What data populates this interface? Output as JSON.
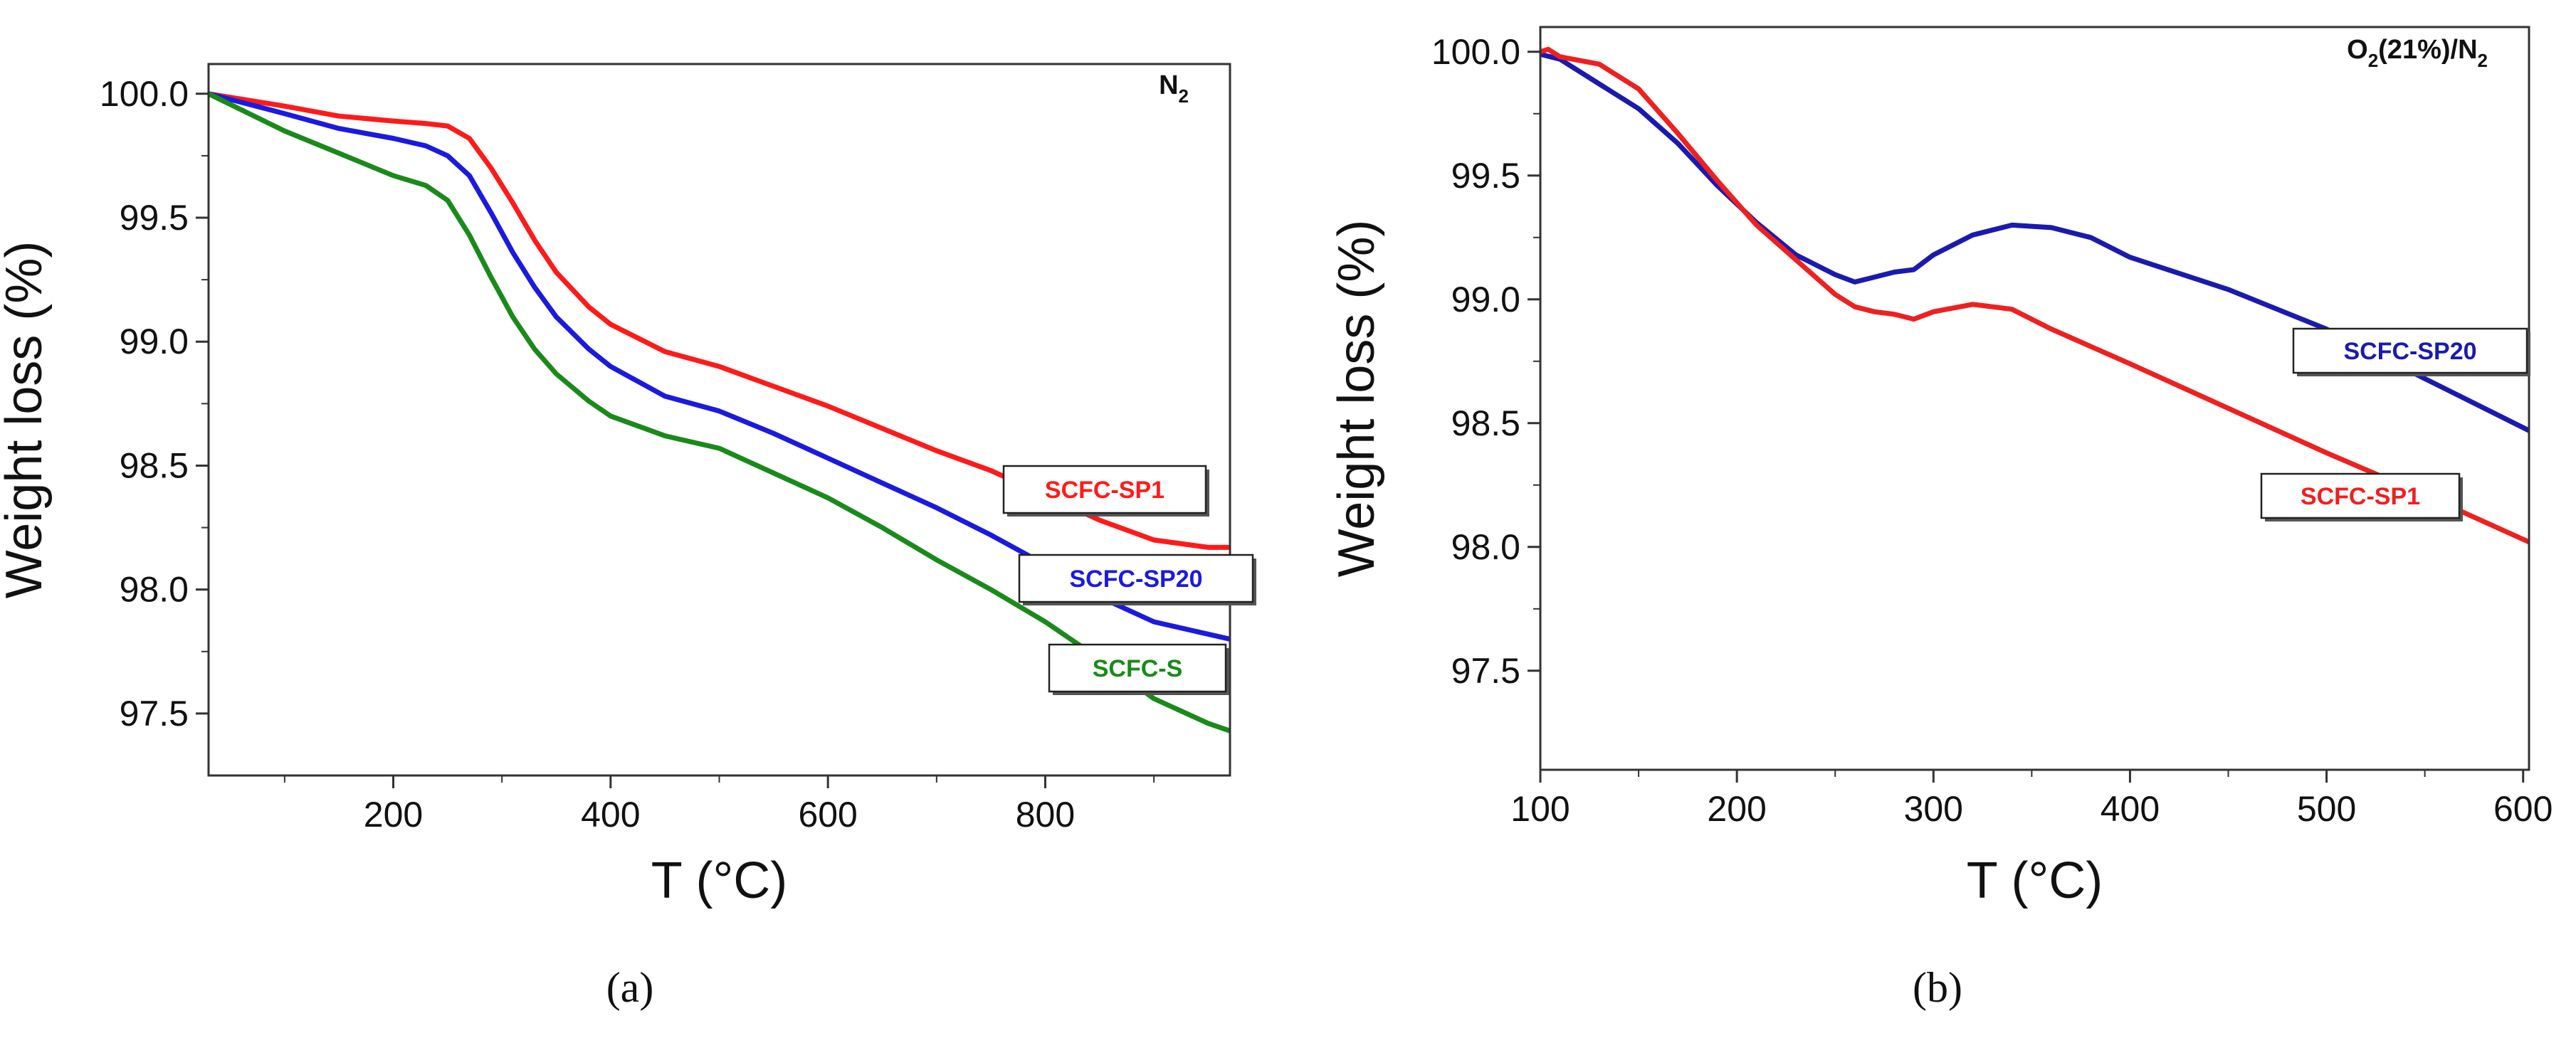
{
  "figure": {
    "panel_a_caption": "(a)",
    "panel_b_caption": "(b)"
  },
  "chart_data": [
    {
      "type": "line",
      "panel": "a",
      "atmosphere": {
        "base": "N",
        "sub": "2",
        "rest": ""
      },
      "xlabel": "T (°C)",
      "ylabel": "Weight loss (%)",
      "xlim": [
        30,
        970
      ],
      "ylim": [
        97.25,
        100.12
      ],
      "xticks": [
        200,
        400,
        600,
        800
      ],
      "yticks": [
        97.5,
        98.0,
        98.5,
        99.0,
        99.5,
        100.0
      ],
      "ytick_labels": [
        "97.5",
        "98.0",
        "98.5",
        "99.0",
        "99.5",
        "100.0"
      ],
      "series": [
        {
          "name": "SCFC-SP1",
          "color": "#ff1a1a",
          "x": [
            30,
            100,
            150,
            200,
            230,
            250,
            270,
            290,
            310,
            330,
            350,
            380,
            400,
            450,
            500,
            550,
            600,
            650,
            700,
            750,
            800,
            850,
            900,
            950,
            970
          ],
          "y": [
            100.0,
            99.95,
            99.91,
            99.89,
            99.88,
            99.87,
            99.82,
            99.7,
            99.56,
            99.41,
            99.28,
            99.14,
            99.07,
            98.96,
            98.9,
            98.82,
            98.74,
            98.65,
            98.56,
            98.48,
            98.38,
            98.28,
            98.2,
            98.17,
            98.17
          ]
        },
        {
          "name": "SCFC-SP20",
          "color": "#1a1ae0",
          "x": [
            30,
            100,
            150,
            200,
            230,
            250,
            270,
            290,
            310,
            330,
            350,
            380,
            400,
            450,
            500,
            550,
            600,
            650,
            700,
            750,
            800,
            850,
            900,
            950,
            970
          ],
          "y": [
            100.0,
            99.92,
            99.86,
            99.82,
            99.79,
            99.75,
            99.67,
            99.52,
            99.36,
            99.22,
            99.1,
            98.97,
            98.9,
            98.78,
            98.72,
            98.63,
            98.53,
            98.43,
            98.33,
            98.22,
            98.1,
            97.97,
            97.87,
            97.82,
            97.8
          ]
        },
        {
          "name": "SCFC-S",
          "color": "#1a8a1a",
          "x": [
            30,
            100,
            150,
            200,
            230,
            250,
            270,
            290,
            310,
            330,
            350,
            380,
            400,
            450,
            500,
            550,
            600,
            650,
            700,
            750,
            800,
            850,
            900,
            950,
            970
          ],
          "y": [
            100.0,
            99.85,
            99.76,
            99.67,
            99.63,
            99.57,
            99.43,
            99.26,
            99.1,
            98.97,
            98.87,
            98.76,
            98.7,
            98.62,
            98.57,
            98.47,
            98.37,
            98.25,
            98.12,
            98.0,
            97.87,
            97.72,
            97.56,
            97.46,
            97.43
          ]
        }
      ],
      "legend": [
        {
          "label": "SCFC-SP1",
          "color": "#ff1a1a"
        },
        {
          "label": "SCFC-SP20",
          "color": "#1a1ae0"
        },
        {
          "label": "SCFC-S",
          "color": "#1a8a1a"
        }
      ]
    },
    {
      "type": "line",
      "panel": "b",
      "atmosphere": {
        "base": "O",
        "sub": "2",
        "rest": "(21%)/N",
        "sub2": "2"
      },
      "xlabel": "T (°C)",
      "ylabel": "Weight loss (%)",
      "xlim": [
        100,
        603
      ],
      "ylim": [
        97.1,
        100.1
      ],
      "xticks": [
        100,
        200,
        300,
        400,
        500,
        600
      ],
      "yticks": [
        97.5,
        98.0,
        98.5,
        99.0,
        99.5,
        100.0
      ],
      "ytick_labels": [
        "97.5",
        "98.0",
        "98.5",
        "99.0",
        "99.5",
        "100.0"
      ],
      "series": [
        {
          "name": "SCFC-SP20",
          "color": "#1a1ab0",
          "x": [
            100,
            110,
            130,
            150,
            170,
            190,
            210,
            230,
            250,
            260,
            270,
            280,
            290,
            300,
            320,
            340,
            360,
            380,
            400,
            450,
            500,
            550,
            603
          ],
          "y": [
            99.99,
            99.97,
            99.87,
            99.77,
            99.63,
            99.46,
            99.31,
            99.18,
            99.1,
            99.07,
            99.09,
            99.11,
            99.12,
            99.18,
            99.26,
            99.3,
            99.29,
            99.25,
            99.17,
            99.04,
            98.88,
            98.68,
            98.47
          ]
        },
        {
          "name": "SCFC-SP1",
          "color": "#ee2020",
          "x": [
            100,
            104,
            110,
            130,
            150,
            170,
            190,
            210,
            230,
            250,
            260,
            270,
            280,
            290,
            300,
            320,
            330,
            340,
            360,
            400,
            450,
            500,
            550,
            603
          ],
          "y": [
            100.0,
            100.01,
            99.98,
            99.95,
            99.85,
            99.67,
            99.48,
            99.3,
            99.16,
            99.02,
            98.97,
            98.95,
            98.94,
            98.92,
            98.95,
            98.98,
            98.97,
            98.96,
            98.88,
            98.74,
            98.56,
            98.38,
            98.21,
            98.02
          ]
        }
      ],
      "legend": [
        {
          "label": "SCFC-SP20",
          "color": "#1a1ab0"
        },
        {
          "label": "SCFC-SP1",
          "color": "#ee2020"
        }
      ]
    }
  ]
}
